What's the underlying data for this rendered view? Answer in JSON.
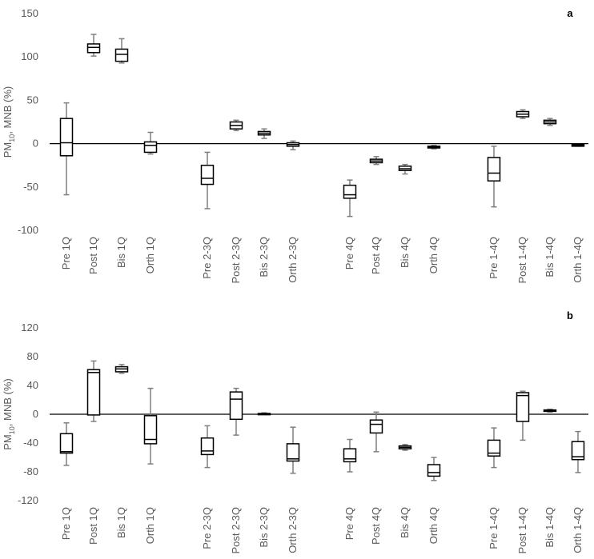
{
  "chart_data": [
    {
      "type": "box",
      "panel_label": "a",
      "ylabel": {
        "prefix": "PM",
        "sub": "10",
        "suffix": ", MNB (%)"
      },
      "ylim": [
        -100,
        150
      ],
      "yticks": [
        150,
        100,
        50,
        0,
        -50,
        -100
      ],
      "groups": [
        {
          "boxes": [
            {
              "label": "Pre 1Q",
              "min": -59,
              "q1": -14,
              "median": 1,
              "q3": 29,
              "max": 47
            },
            {
              "label": "Post 1Q",
              "min": 101,
              "q1": 105,
              "median": 111,
              "q3": 115,
              "max": 126
            },
            {
              "label": "Bis 1Q",
              "min": 93,
              "q1": 95,
              "median": 103,
              "q3": 109,
              "max": 121
            },
            {
              "label": "Orth 1Q",
              "min": -12,
              "q1": -10,
              "median": -2,
              "q3": 2,
              "max": 13
            }
          ]
        },
        {
          "boxes": [
            {
              "label": "Pre 2-3Q",
              "min": -75,
              "q1": -47,
              "median": -40,
              "q3": -25,
              "max": -10
            },
            {
              "label": "Post 2-3Q",
              "min": 15,
              "q1": 17,
              "median": 21,
              "q3": 25,
              "max": 27
            },
            {
              "label": "Bis 2-3Q",
              "min": 6,
              "q1": 10,
              "median": 12,
              "q3": 14,
              "max": 17
            },
            {
              "label": "Orth 2-3Q",
              "min": -7,
              "q1": -3,
              "median": -1,
              "q3": 1,
              "max": 3
            }
          ]
        },
        {
          "boxes": [
            {
              "label": "Pre 4Q",
              "min": -84,
              "q1": -63,
              "median": -59,
              "q3": -48,
              "max": -42
            },
            {
              "label": "Post 4Q",
              "min": -24,
              "q1": -22,
              "median": -20,
              "q3": -18,
              "max": -15
            },
            {
              "label": "Bis 4Q",
              "min": -35,
              "q1": -31,
              "median": -29,
              "q3": -26,
              "max": -24
            },
            {
              "label": "Orth 4Q",
              "min": -6,
              "q1": -5,
              "median": -4,
              "q3": -3,
              "max": -2
            }
          ]
        },
        {
          "boxes": [
            {
              "label": "Pre 1-4Q",
              "min": -73,
              "q1": -43,
              "median": -34,
              "q3": -16,
              "max": -3
            },
            {
              "label": "Post 1-4Q",
              "min": 29,
              "q1": 31,
              "median": 34,
              "q3": 37,
              "max": 39
            },
            {
              "label": "Bis 1-4Q",
              "min": 21,
              "q1": 23,
              "median": 25,
              "q3": 27,
              "max": 29
            },
            {
              "label": "Orth 1-4Q",
              "min": -3,
              "q1": -3,
              "median": -2,
              "q3": -1,
              "max": -1
            }
          ]
        }
      ]
    },
    {
      "type": "box",
      "panel_label": "b",
      "ylabel": {
        "prefix": "PM",
        "sub": "10",
        "suffix": ", MNB (%)"
      },
      "ylim": [
        -120,
        120
      ],
      "yticks": [
        120,
        80,
        40,
        0,
        -40,
        -80,
        -120
      ],
      "groups": [
        {
          "boxes": [
            {
              "label": "Pre 1Q",
              "min": -71,
              "q1": -54,
              "median": -52,
              "q3": -27,
              "max": -12
            },
            {
              "label": "Post 1Q",
              "min": -10,
              "q1": -1,
              "median": 58,
              "q3": 62,
              "max": 74
            },
            {
              "label": "Bis 1Q",
              "min": 57,
              "q1": 59,
              "median": 63,
              "q3": 66,
              "max": 69
            },
            {
              "label": "Orth 1Q",
              "min": -69,
              "q1": -41,
              "median": -35,
              "q3": -2,
              "max": 36
            }
          ]
        },
        {
          "boxes": [
            {
              "label": "Pre 2-3Q",
              "min": -74,
              "q1": -56,
              "median": -51,
              "q3": -33,
              "max": -16
            },
            {
              "label": "Post 2-3Q",
              "min": -29,
              "q1": -7,
              "median": 21,
              "q3": 31,
              "max": 36
            },
            {
              "label": "Bis 2-3Q",
              "min": 0,
              "q1": 0,
              "median": 1,
              "q3": 1,
              "max": 2
            },
            {
              "label": "Orth 2-3Q",
              "min": -82,
              "q1": -65,
              "median": -62,
              "q3": -41,
              "max": -18
            }
          ]
        },
        {
          "boxes": [
            {
              "label": "Pre 4Q",
              "min": -80,
              "q1": -66,
              "median": -62,
              "q3": -48,
              "max": -35
            },
            {
              "label": "Post 4Q",
              "min": -52,
              "q1": -26,
              "median": -14,
              "q3": -8,
              "max": 3
            },
            {
              "label": "Bis 4Q",
              "min": -50,
              "q1": -48,
              "median": -46,
              "q3": -44,
              "max": -42
            },
            {
              "label": "Orth 4Q",
              "min": -92,
              "q1": -86,
              "median": -81,
              "q3": -70,
              "max": -60
            }
          ]
        },
        {
          "boxes": [
            {
              "label": "Pre 1-4Q",
              "min": -74,
              "q1": -58,
              "median": -54,
              "q3": -36,
              "max": -19
            },
            {
              "label": "Post 1-4Q",
              "min": -36,
              "q1": -10,
              "median": 26,
              "q3": 30,
              "max": 32
            },
            {
              "label": "Bis 1-4Q",
              "min": 3,
              "q1": 4,
              "median": 5,
              "q3": 6,
              "max": 7
            },
            {
              "label": "Orth 1-4Q",
              "min": -81,
              "q1": -63,
              "median": -59,
              "q3": -38,
              "max": -24
            }
          ]
        }
      ]
    }
  ]
}
